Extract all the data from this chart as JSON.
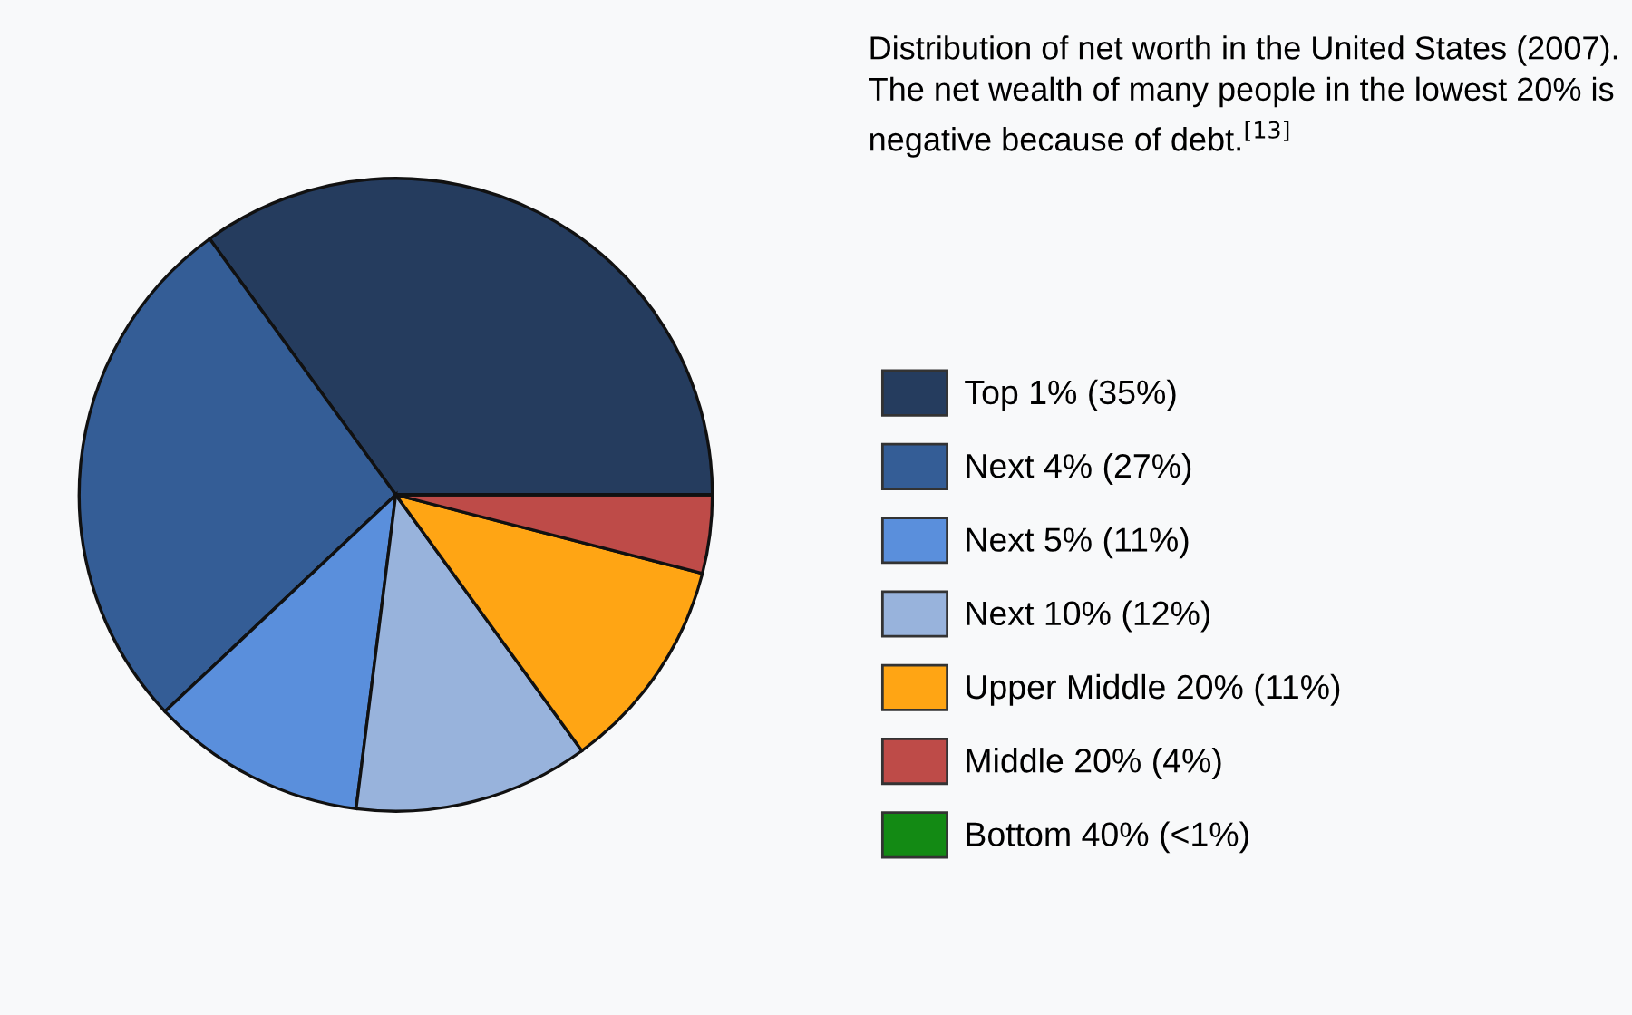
{
  "chart_data": {
    "type": "pie",
    "title": "Distribution of net worth in the United States (2007). The net wealth of many people in the lowest 20% is negative because of debt.$^{[13]}$",
    "categories": [
      "Top 1% (35%)",
      "Next 4% (27%)",
      "Next 5% (11%)",
      "Next 10% (12%)",
      "Upper Middle 20% (11%)",
      "Middle 20% (4%)",
      "Bottom 40% (<1%)"
    ],
    "values": [
      35,
      27,
      11,
      12,
      11,
      4,
      0
    ],
    "colors": [
      "#253c5e",
      "#345d96",
      "#5a8fdc",
      "#98b3dc",
      "#ffa514",
      "#be4b48",
      "#138a14"
    ],
    "legend": "right"
  }
}
